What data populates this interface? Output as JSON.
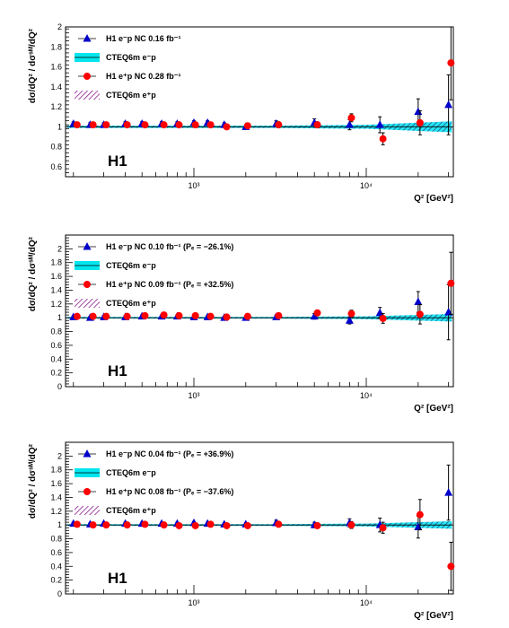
{
  "colors": {
    "em": "#0000cc",
    "ep": "#ff0000",
    "band_em": "#00e5ee",
    "band_ep": "#8b1a8b",
    "hatch": "#1a3c8c"
  },
  "chart_data": [
    {
      "type": "scatter",
      "experiment": "H1",
      "x_axis_label": "Q² [GeV²]",
      "x_scale": "log",
      "xlim": [
        180,
        32000
      ],
      "x_tick_labels": [
        "10³",
        "10⁴"
      ],
      "y_axis_label": "dσ/dQ² / dσˢᴹ/dQ²",
      "ylim": [
        0.5,
        2.0
      ],
      "y_ticks": [
        "0.6",
        "0.8",
        "1",
        "1.2",
        "1.4",
        "1.6",
        "1.8",
        "2"
      ],
      "legend": [
        {
          "marker": "triangle",
          "text": "H1 e⁻p NC 0.16 fb⁻¹"
        },
        {
          "marker": "band_cyan",
          "text": "CTEQ6m e⁻p"
        },
        {
          "marker": "circle",
          "text": "H1 e⁺p NC 0.28 fb⁻¹"
        },
        {
          "marker": "band_hatch",
          "text": "CTEQ6m e⁺p"
        }
      ],
      "series": [
        {
          "name": "H1 e⁻p NC 0.16 fb⁻¹",
          "marker": "triangle",
          "x": [
            200,
            250,
            300,
            400,
            500,
            650,
            800,
            1000,
            1200,
            1500,
            2000,
            3000,
            5000,
            8000,
            12000,
            20000,
            30000
          ],
          "y": [
            1.03,
            1.02,
            1.02,
            1.03,
            1.03,
            1.03,
            1.03,
            1.04,
            1.04,
            1.02,
            1.0,
            1.03,
            1.04,
            1.02,
            1.02,
            1.15,
            1.22
          ],
          "err": [
            0.02,
            0.02,
            0.02,
            0.02,
            0.02,
            0.02,
            0.02,
            0.02,
            0.02,
            0.02,
            0.02,
            0.03,
            0.04,
            0.05,
            0.08,
            0.13,
            0.3
          ]
        },
        {
          "name": "H1 e⁺p NC 0.28 fb⁻¹",
          "marker": "circle",
          "x": [
            210,
            260,
            310,
            410,
            520,
            670,
            820,
            1020,
            1250,
            1550,
            2050,
            3100,
            5200,
            8200,
            12500,
            20500,
            31000
          ],
          "y": [
            1.02,
            1.02,
            1.02,
            1.02,
            1.02,
            1.02,
            1.02,
            1.02,
            1.02,
            1.0,
            1.01,
            1.02,
            1.02,
            1.09,
            0.88,
            1.04,
            1.64
          ],
          "err": [
            0.02,
            0.02,
            0.02,
            0.02,
            0.02,
            0.02,
            0.02,
            0.02,
            0.02,
            0.02,
            0.02,
            0.03,
            0.03,
            0.04,
            0.06,
            0.12,
            0.37
          ]
        }
      ]
    },
    {
      "type": "scatter",
      "experiment": "H1",
      "x_axis_label": "Q² [GeV²]",
      "x_scale": "log",
      "xlim": [
        180,
        32000
      ],
      "x_tick_labels": [
        "10³",
        "10⁴"
      ],
      "y_axis_label": "dσ/dQ² / dσˢᴹ/dQ²",
      "ylim": [
        0.0,
        2.2
      ],
      "y_ticks": [
        "0",
        "0.2",
        "0.4",
        "0.6",
        "0.8",
        "1",
        "1.2",
        "1.4",
        "1.6",
        "1.8",
        "2"
      ],
      "legend": [
        {
          "marker": "triangle",
          "text": "H1 e⁻p NC 0.10 fb⁻¹ (Pₑ = −26.1%)"
        },
        {
          "marker": "band_cyan",
          "text": "CTEQ6m e⁻p"
        },
        {
          "marker": "circle",
          "text": "H1 e⁺p NC 0.09 fb⁻¹ (Pₑ = +32.5%)"
        },
        {
          "marker": "band_hatch",
          "text": "CTEQ6m e⁺p"
        }
      ],
      "series": [
        {
          "name": "H1 e⁻p NC 0.10 fb⁻¹ (Pₑ = −26.1%)",
          "marker": "triangle",
          "x": [
            200,
            250,
            300,
            400,
            500,
            650,
            800,
            1000,
            1200,
            1500,
            2000,
            3000,
            5000,
            8000,
            12000,
            20000,
            30000
          ],
          "y": [
            1.01,
            1.0,
            1.01,
            1.01,
            1.02,
            1.02,
            1.02,
            1.01,
            1.01,
            1.0,
            1.0,
            1.01,
            1.02,
            0.96,
            1.07,
            1.23,
            1.08
          ],
          "err": [
            0.02,
            0.02,
            0.02,
            0.02,
            0.02,
            0.02,
            0.02,
            0.02,
            0.02,
            0.02,
            0.02,
            0.03,
            0.04,
            0.05,
            0.08,
            0.15,
            0.4
          ]
        },
        {
          "name": "H1 e⁺p NC 0.09 fb⁻¹ (Pₑ = +32.5%)",
          "marker": "circle",
          "x": [
            210,
            260,
            310,
            410,
            520,
            670,
            820,
            1020,
            1250,
            1550,
            2050,
            3100,
            5200,
            8200,
            12500,
            20500,
            31000
          ],
          "y": [
            1.02,
            1.02,
            1.02,
            1.02,
            1.03,
            1.04,
            1.03,
            1.03,
            1.02,
            1.01,
            1.02,
            1.03,
            1.07,
            1.06,
            0.99,
            1.05,
            1.5
          ],
          "err": [
            0.02,
            0.02,
            0.02,
            0.02,
            0.02,
            0.02,
            0.02,
            0.02,
            0.02,
            0.02,
            0.02,
            0.03,
            0.04,
            0.05,
            0.07,
            0.14,
            0.45
          ]
        }
      ]
    },
    {
      "type": "scatter",
      "experiment": "H1",
      "x_axis_label": "Q² [GeV²]",
      "x_scale": "log",
      "xlim": [
        180,
        32000
      ],
      "x_tick_labels": [
        "10³",
        "10⁴"
      ],
      "y_axis_label": "dσ/dQ² / dσˢᴹ/dQ²",
      "ylim": [
        0.0,
        2.2
      ],
      "y_ticks": [
        "0",
        "0.2",
        "0.4",
        "0.6",
        "0.8",
        "1",
        "1.2",
        "1.4",
        "1.6",
        "1.8",
        "2"
      ],
      "legend": [
        {
          "marker": "triangle",
          "text": "H1 e⁻p NC 0.04 fb⁻¹ (Pₑ = +36.9%)"
        },
        {
          "marker": "band_cyan",
          "text": "CTEQ6m e⁻p"
        },
        {
          "marker": "circle",
          "text": "H1 e⁺p NC 0.08 fb⁻¹ (Pₑ = −37.6%)"
        },
        {
          "marker": "band_hatch",
          "text": "CTEQ6m e⁺p"
        }
      ],
      "series": [
        {
          "name": "H1 e⁻p NC 0.04 fb⁻¹ (Pₑ = +36.9%)",
          "marker": "triangle",
          "x": [
            200,
            250,
            300,
            400,
            500,
            650,
            800,
            1000,
            1200,
            1500,
            2000,
            3000,
            5000,
            8000,
            12000,
            20000,
            30000
          ],
          "y": [
            1.02,
            1.01,
            1.02,
            1.02,
            1.02,
            1.02,
            1.02,
            1.03,
            1.02,
            1.01,
            1.01,
            1.03,
            1.0,
            1.03,
            1.0,
            0.97,
            1.47
          ],
          "err": [
            0.02,
            0.02,
            0.02,
            0.02,
            0.02,
            0.02,
            0.02,
            0.02,
            0.02,
            0.02,
            0.02,
            0.04,
            0.04,
            0.06,
            0.1,
            0.16,
            0.4
          ]
        },
        {
          "name": "H1 e⁺p NC 0.08 fb⁻¹ (Pₑ = −37.6%)",
          "marker": "circle",
          "x": [
            210,
            260,
            310,
            410,
            520,
            670,
            820,
            1020,
            1250,
            1550,
            2050,
            3100,
            5200,
            8200,
            12500,
            20500,
            31000
          ],
          "y": [
            1.01,
            1.0,
            1.0,
            1.0,
            1.01,
            1.0,
            0.99,
            0.99,
            1.01,
            0.99,
            0.99,
            1.01,
            0.99,
            1.0,
            0.96,
            1.15,
            0.4
          ],
          "err": [
            0.02,
            0.02,
            0.02,
            0.02,
            0.02,
            0.02,
            0.02,
            0.02,
            0.02,
            0.02,
            0.02,
            0.03,
            0.04,
            0.05,
            0.08,
            0.22,
            0.35
          ]
        }
      ]
    }
  ]
}
